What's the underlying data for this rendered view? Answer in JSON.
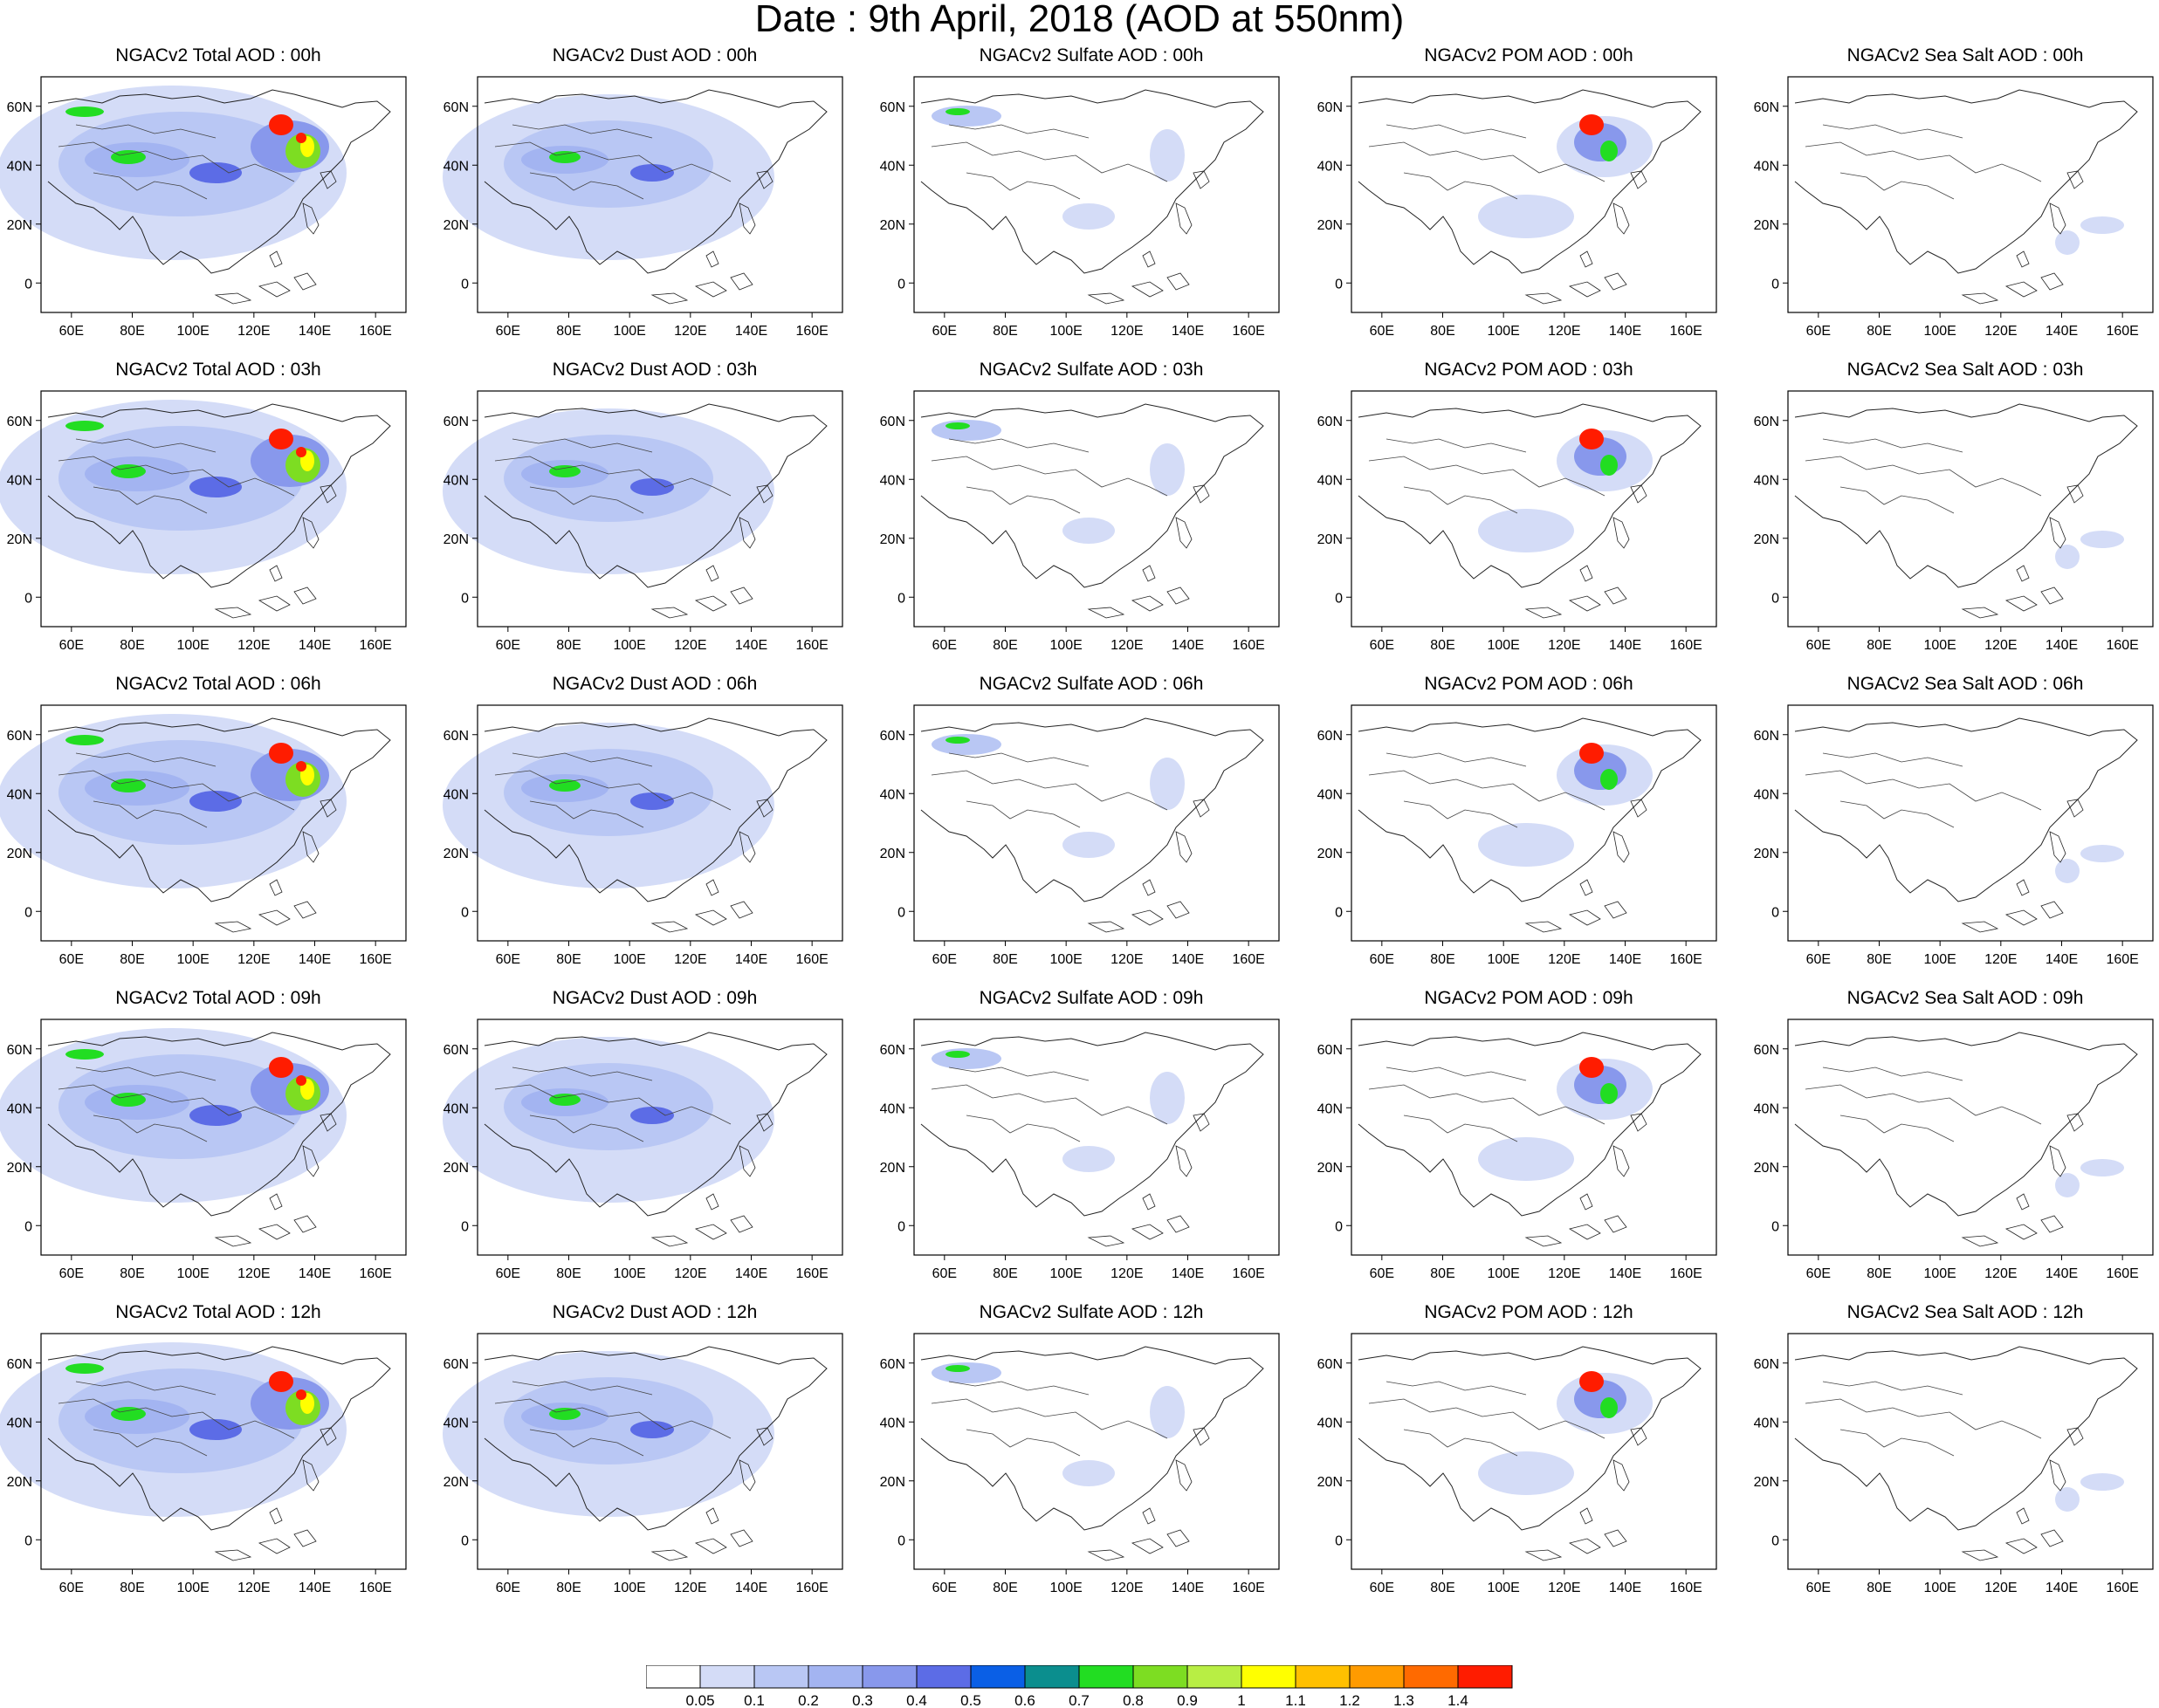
{
  "title": "Date : 9th April, 2018 (AOD at 550nm)",
  "lat_ticks": [
    "60N",
    "40N",
    "20N",
    "0"
  ],
  "lon_ticks": [
    "60E",
    "80E",
    "100E",
    "120E",
    "140E",
    "160E"
  ],
  "rows": [
    {
      "panels": [
        "NGACv2 Total AOD : 00h",
        "NGACv2 Dust AOD : 00h",
        "NGACv2 Sulfate AOD : 00h",
        "NGACv2 POM AOD : 00h",
        "NGACv2 Sea Salt AOD : 00h"
      ]
    },
    {
      "panels": [
        "NGACv2 Total AOD : 03h",
        "NGACv2 Dust AOD : 03h",
        "NGACv2 Sulfate AOD : 03h",
        "NGACv2 POM AOD : 03h",
        "NGACv2 Sea Salt AOD : 03h"
      ]
    },
    {
      "panels": [
        "NGACv2 Total AOD : 06h",
        "NGACv2 Dust AOD : 06h",
        "NGACv2 Sulfate AOD : 06h",
        "NGACv2 POM AOD : 06h",
        "NGACv2 Sea Salt AOD : 06h"
      ]
    },
    {
      "panels": [
        "NGACv2 Total AOD : 09h",
        "NGACv2 Dust AOD : 09h",
        "NGACv2 Sulfate AOD : 09h",
        "NGACv2 POM AOD : 09h",
        "NGACv2 Sea Salt  AOD : 09h"
      ]
    },
    {
      "panels": [
        "NGACv2 Total AOD  : 12h",
        "NGACv2 Dust AOD : 12h",
        "NGACv2 Sulfate AOD : 12h",
        "NGACv2 POM  AOD : 12h",
        "NGACv2 Sea Salt  AOD : 12h"
      ]
    }
  ],
  "colorbar": {
    "labels": [
      "0.05",
      "0.1",
      "0.2",
      "0.3",
      "0.4",
      "0.5",
      "0.6",
      "0.7",
      "0.8",
      "0.9",
      "1",
      "1.1",
      "1.2",
      "1.3",
      "1.4"
    ],
    "colors": [
      "#ffffff",
      "#d4dcf7",
      "#b9c7f4",
      "#a3b4f1",
      "#8898ec",
      "#5c6ce6",
      "#0a5fe6",
      "#0b8e8e",
      "#22dd22",
      "#7ddd22",
      "#b8ee44",
      "#ffff00",
      "#ffc000",
      "#ff9b00",
      "#ff6a00",
      "#ff1c00"
    ]
  }
}
